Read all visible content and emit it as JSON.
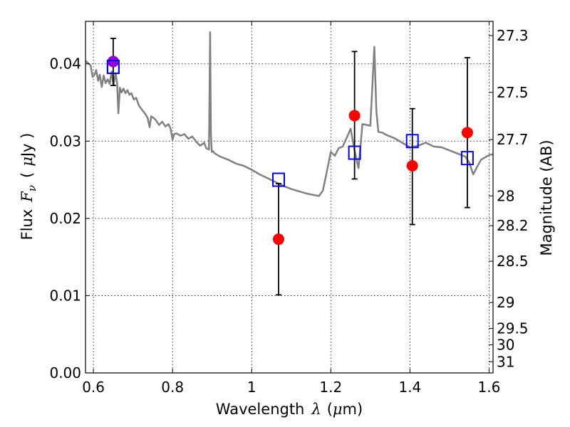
{
  "chart_data": {
    "type": "scatter",
    "title": "",
    "xlabel_prefix": "Wavelength",
    "xlabel_symbol": "λ",
    "xlabel_unit_open": "(",
    "xlabel_unit_symbol": "μ",
    "xlabel_unit_rest": "m)",
    "ylabel_prefix": "Flux",
    "ylabel_symbol": "F",
    "ylabel_subscript": "ν",
    "ylabel_unit_open": "(",
    "ylabel_unit_symbol": "μ",
    "ylabel_unit_rest": "Jy )",
    "y2label": "Magnitude (AB)",
    "xlim": [
      0.58,
      1.61
    ],
    "ylim": [
      0.0,
      0.0455
    ],
    "grid": true,
    "x_ticks": [
      {
        "value": 0.6,
        "label": "0.6"
      },
      {
        "value": 0.8,
        "label": "0.8"
      },
      {
        "value": 1.0,
        "label": "1"
      },
      {
        "value": 1.2,
        "label": "1.2"
      },
      {
        "value": 1.4,
        "label": "1.4"
      },
      {
        "value": 1.6,
        "label": "1.6"
      }
    ],
    "y_ticks": [
      {
        "value": 0.0,
        "label": "0.00"
      },
      {
        "value": 0.01,
        "label": "0.01"
      },
      {
        "value": 0.02,
        "label": "0.02"
      },
      {
        "value": 0.03,
        "label": "0.03"
      },
      {
        "value": 0.04,
        "label": "0.04"
      }
    ],
    "y2_ticks": [
      {
        "value": 27.3,
        "label": "27.3"
      },
      {
        "value": 27.5,
        "label": "27.5"
      },
      {
        "value": 27.7,
        "label": "27.7"
      },
      {
        "value": 28.0,
        "label": "28"
      },
      {
        "value": 28.2,
        "label": "28.2"
      },
      {
        "value": 28.5,
        "label": "28.5"
      },
      {
        "value": 29.0,
        "label": "29"
      },
      {
        "value": 29.5,
        "label": "29.5"
      },
      {
        "value": 30.0,
        "label": "30"
      },
      {
        "value": 31.0,
        "label": "31"
      }
    ],
    "series": [
      {
        "kind": "line",
        "color": "#808080",
        "x": [
          0.58,
          0.593,
          0.598,
          0.603,
          0.607,
          0.612,
          0.616,
          0.621,
          0.626,
          0.631,
          0.636,
          0.641,
          0.646,
          0.651,
          0.656,
          0.66,
          0.663,
          0.667,
          0.671,
          0.676,
          0.681,
          0.686,
          0.691,
          0.696,
          0.702,
          0.708,
          0.715,
          0.722,
          0.73,
          0.737,
          0.742,
          0.746,
          0.752,
          0.758,
          0.766,
          0.774,
          0.782,
          0.79,
          0.795,
          0.8,
          0.804,
          0.81,
          0.82,
          0.83,
          0.84,
          0.85,
          0.86,
          0.87,
          0.88,
          0.885,
          0.892,
          0.895,
          0.897,
          0.899,
          0.902,
          0.905,
          0.91,
          0.92,
          0.94,
          0.96,
          0.98,
          1.0,
          1.02,
          1.04,
          1.06,
          1.08,
          1.1,
          1.12,
          1.14,
          1.16,
          1.17,
          1.18,
          1.19,
          1.2,
          1.21,
          1.22,
          1.23,
          1.24,
          1.25,
          1.26,
          1.27,
          1.28,
          1.29,
          1.3,
          1.31,
          1.315,
          1.32,
          1.33,
          1.34,
          1.36,
          1.38,
          1.4,
          1.42,
          1.44,
          1.46,
          1.48,
          1.5,
          1.52,
          1.54,
          1.55,
          1.56,
          1.57,
          1.58,
          1.59,
          1.6,
          1.61
        ],
        "y": [
          0.0404,
          0.0398,
          0.0383,
          0.0386,
          0.0392,
          0.0378,
          0.0386,
          0.037,
          0.0385,
          0.0375,
          0.038,
          0.0374,
          0.039,
          0.0372,
          0.0388,
          0.0375,
          0.0336,
          0.0369,
          0.0363,
          0.0368,
          0.0362,
          0.0366,
          0.036,
          0.0362,
          0.0354,
          0.0356,
          0.0346,
          0.0341,
          0.0336,
          0.033,
          0.0318,
          0.0332,
          0.033,
          0.0327,
          0.0321,
          0.0325,
          0.0319,
          0.0322,
          0.0316,
          0.0302,
          0.0309,
          0.031,
          0.0307,
          0.0309,
          0.0303,
          0.0306,
          0.0299,
          0.0294,
          0.0298,
          0.0291,
          0.0289,
          0.0441,
          0.031,
          0.0286,
          0.0287,
          0.0285,
          0.0283,
          0.028,
          0.0276,
          0.0271,
          0.0268,
          0.0263,
          0.0257,
          0.0252,
          0.0247,
          0.0242,
          0.0238,
          0.0235,
          0.0232,
          0.023,
          0.0229,
          0.0236,
          0.0261,
          0.0286,
          0.0281,
          0.0291,
          0.0293,
          0.0304,
          0.0316,
          0.0288,
          0.0265,
          0.0322,
          0.0321,
          0.032,
          0.0422,
          0.034,
          0.0312,
          0.0311,
          0.0308,
          0.0304,
          0.0298,
          0.0292,
          0.0294,
          0.0298,
          0.0293,
          0.0292,
          0.0288,
          0.0284,
          0.028,
          0.0272,
          0.0257,
          0.0267,
          0.0276,
          0.0279,
          0.0282,
          0.0283
        ]
      },
      {
        "kind": "points",
        "marker": "circle",
        "color": "#ff0000",
        "points": [
          {
            "x": 0.65,
            "y": 0.0403,
            "yerr_low": 0.0372,
            "yerr_high": 0.0433
          },
          {
            "x": 1.068,
            "y": 0.0173,
            "yerr_low": 0.0101,
            "yerr_high": 0.0245
          },
          {
            "x": 1.26,
            "y": 0.0333,
            "yerr_low": 0.0251,
            "yerr_high": 0.0416
          },
          {
            "x": 1.406,
            "y": 0.0268,
            "yerr_low": 0.0192,
            "yerr_high": 0.0342
          },
          {
            "x": 1.545,
            "y": 0.0311,
            "yerr_low": 0.0214,
            "yerr_high": 0.0408
          }
        ]
      },
      {
        "kind": "points",
        "marker": "square-open",
        "color": "#0000ff",
        "points": [
          {
            "x": 0.65,
            "y": 0.0396
          },
          {
            "x": 1.068,
            "y": 0.025
          },
          {
            "x": 1.26,
            "y": 0.0285
          },
          {
            "x": 1.406,
            "y": 0.03
          },
          {
            "x": 1.545,
            "y": 0.0278
          }
        ]
      }
    ],
    "highlight_point": {
      "x": 0.65,
      "y": 0.0403,
      "color": "#9400d3"
    }
  }
}
